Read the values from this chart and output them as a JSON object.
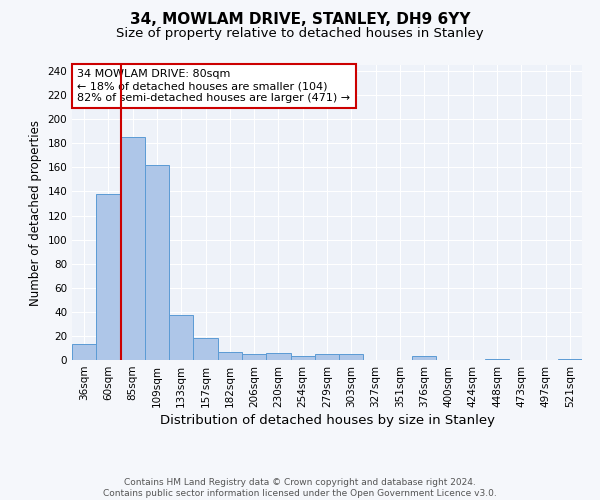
{
  "title": "34, MOWLAM DRIVE, STANLEY, DH9 6YY",
  "subtitle": "Size of property relative to detached houses in Stanley",
  "xlabel": "Distribution of detached houses by size in Stanley",
  "ylabel": "Number of detached properties",
  "categories": [
    "36sqm",
    "60sqm",
    "85sqm",
    "109sqm",
    "133sqm",
    "157sqm",
    "182sqm",
    "206sqm",
    "230sqm",
    "254sqm",
    "279sqm",
    "303sqm",
    "327sqm",
    "351sqm",
    "376sqm",
    "400sqm",
    "424sqm",
    "448sqm",
    "473sqm",
    "497sqm",
    "521sqm"
  ],
  "values": [
    13,
    138,
    185,
    162,
    37,
    18,
    7,
    5,
    6,
    3,
    5,
    5,
    0,
    0,
    3,
    0,
    0,
    1,
    0,
    0,
    1
  ],
  "bar_color": "#aec6e8",
  "bar_edge_color": "#5b9bd5",
  "vline_color": "#cc0000",
  "annotation_text": "34 MOWLAM DRIVE: 80sqm\n← 18% of detached houses are smaller (104)\n82% of semi-detached houses are larger (471) →",
  "annotation_box_color": "#cc0000",
  "footnote": "Contains HM Land Registry data © Crown copyright and database right 2024.\nContains public sector information licensed under the Open Government Licence v3.0.",
  "ylim": [
    0,
    245
  ],
  "yticks": [
    0,
    20,
    40,
    60,
    80,
    100,
    120,
    140,
    160,
    180,
    200,
    220,
    240
  ],
  "background_color": "#eef2f9",
  "grid_color": "#ffffff",
  "title_fontsize": 11,
  "subtitle_fontsize": 9.5,
  "xlabel_fontsize": 9.5,
  "ylabel_fontsize": 8.5,
  "tick_fontsize": 7.5,
  "annotation_fontsize": 8,
  "footnote_fontsize": 6.5
}
